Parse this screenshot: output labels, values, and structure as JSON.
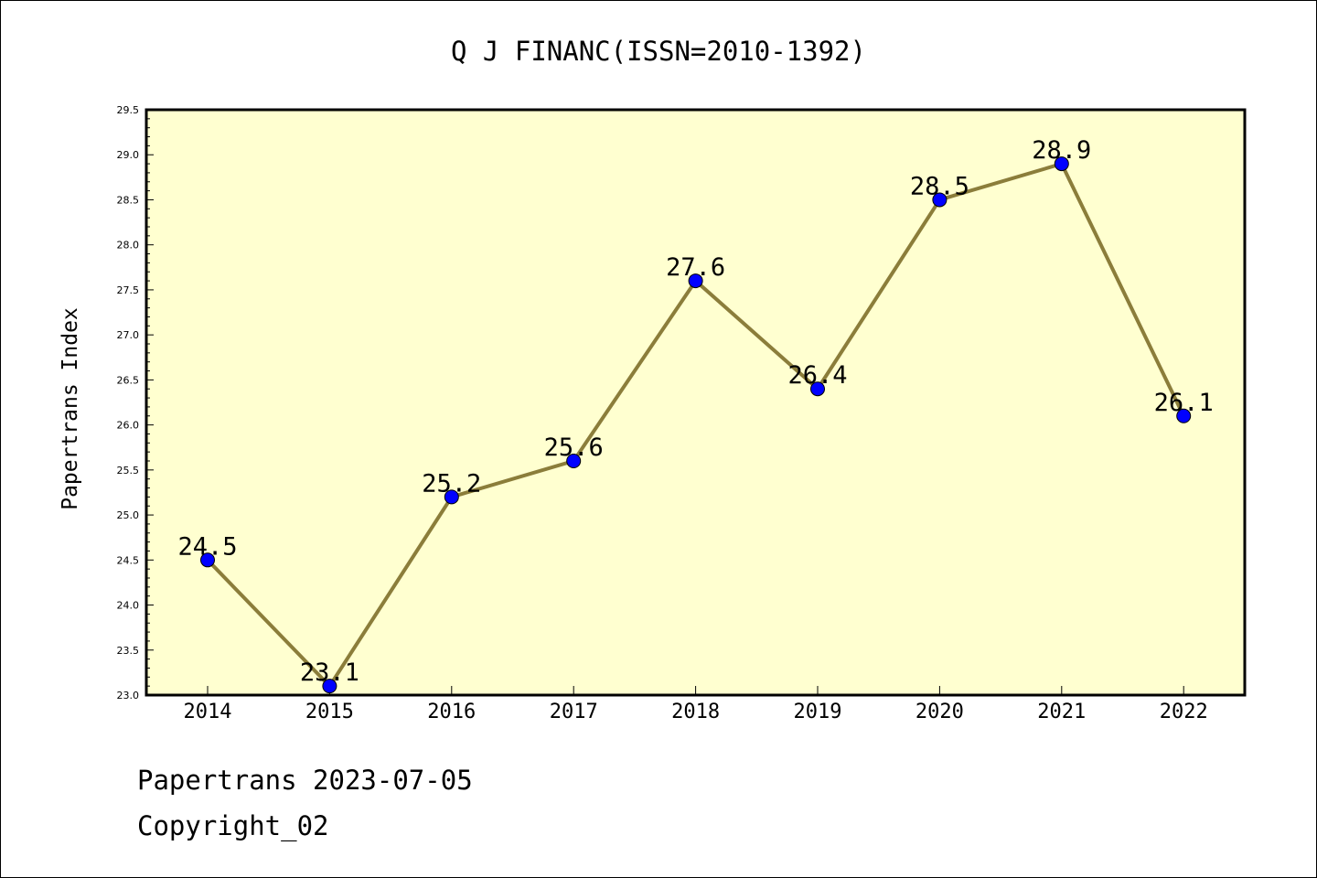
{
  "chart_data": {
    "type": "line",
    "title": "Q J FINANC(ISSN=2010-1392)",
    "xlabel": "",
    "ylabel": "Papertrans Index",
    "categories": [
      "2014",
      "2015",
      "2016",
      "2017",
      "2018",
      "2019",
      "2020",
      "2021",
      "2022"
    ],
    "series": [
      {
        "values": [
          24.5,
          23.1,
          25.2,
          25.6,
          27.6,
          26.4,
          28.5,
          28.9,
          26.1
        ]
      }
    ],
    "data_labels": [
      "24.5",
      "23.1",
      "25.2",
      "25.6",
      "27.6",
      "26.4",
      "28.5",
      "28.9",
      "26.1"
    ],
    "ylim": [
      23.0,
      29.5
    ],
    "yticks": [
      "23.0",
      "23.5",
      "24.0",
      "24.5",
      "25.0",
      "25.5",
      "26.0",
      "26.5",
      "27.0",
      "27.5",
      "28.0",
      "28.5",
      "29.0",
      "29.5"
    ],
    "grid": false,
    "legend": "none",
    "colors": {
      "plot_background": "#FFFFD0",
      "line": "#8B7D3A",
      "marker": "#0000FF",
      "axis": "#000000"
    }
  },
  "footer": {
    "line1": "Papertrans 2023-07-05",
    "line2": "Copyright_02"
  }
}
